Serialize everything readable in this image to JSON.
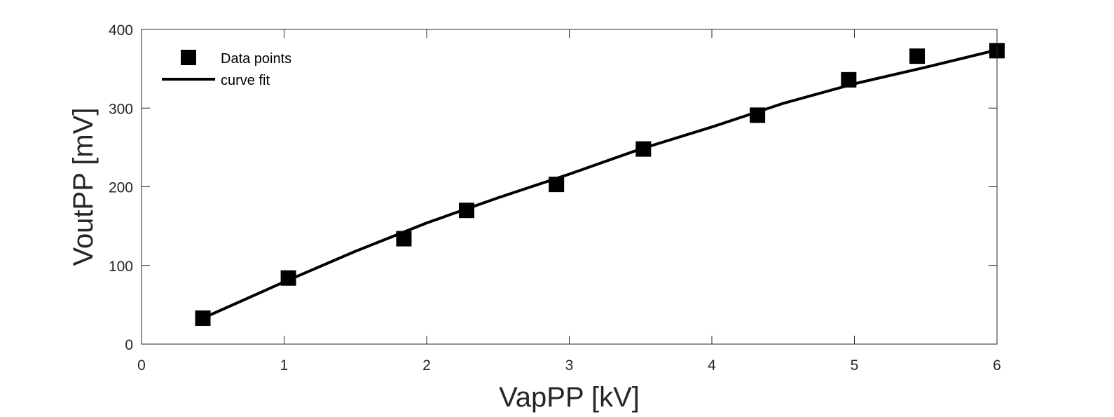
{
  "chart_data": {
    "type": "scatter",
    "xlabel": "VapPP [kV]",
    "ylabel": "VoutPP [mV]",
    "xlim": [
      0,
      6
    ],
    "ylim": [
      0,
      400
    ],
    "xticks": [
      "0",
      "1",
      "2",
      "3",
      "4",
      "5",
      "6"
    ],
    "yticks": [
      "0",
      "100",
      "200",
      "300",
      "400"
    ],
    "grid": false,
    "legend_position": "top-left",
    "colors": {
      "marker": "#000000",
      "line": "#000000",
      "axes": "#262626"
    },
    "series": [
      {
        "name": "Data points",
        "kind": "markers",
        "marker": "square",
        "x": [
          0.43,
          1.03,
          1.84,
          2.28,
          2.91,
          3.52,
          4.32,
          4.96,
          5.44,
          6.0
        ],
        "y": [
          33,
          84,
          134,
          170,
          203,
          248,
          291,
          336,
          366,
          373
        ]
      },
      {
        "name": "curve fit",
        "kind": "line",
        "x": [
          0.43,
          1.0,
          1.5,
          2.0,
          2.5,
          3.0,
          3.5,
          4.0,
          4.5,
          5.0,
          5.5,
          6.0
        ],
        "y": [
          33,
          79,
          118,
          154,
          186,
          216,
          248,
          276,
          306,
          331,
          352,
          374
        ]
      }
    ]
  }
}
